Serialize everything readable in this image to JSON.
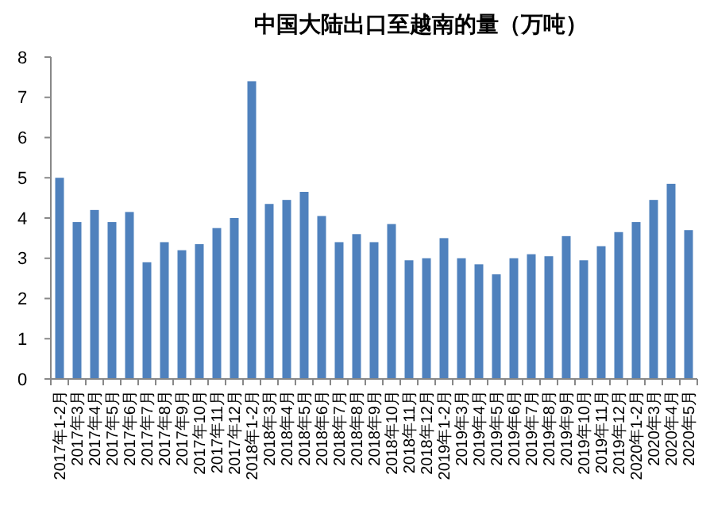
{
  "chart_data": {
    "type": "bar",
    "title": "中国大陆出口至越南的量（万吨）",
    "categories": [
      "2017年1-2月",
      "2017年3月",
      "2017年4月",
      "2017年5月",
      "2017年6月",
      "2017年7月",
      "2017年8月",
      "2017年9月",
      "2017年10月",
      "2017年11月",
      "2017年12月",
      "2018年1-2月",
      "2018年3月",
      "2018年4月",
      "2018年5月",
      "2018年6月",
      "2018年7月",
      "2018年8月",
      "2018年9月",
      "2018年10月",
      "2018年11月",
      "2018年12月",
      "2019年1-2月",
      "2019年3月",
      "2019年4月",
      "2019年5月",
      "2019年6月",
      "2019年7月",
      "2019年8月",
      "2019年9月",
      "2019年10月",
      "2019年11月",
      "2019年12月",
      "2020年1-2月",
      "2020年3月",
      "2020年4月",
      "2020年5月"
    ],
    "values": [
      5.0,
      3.9,
      4.2,
      3.9,
      4.15,
      2.9,
      3.4,
      3.2,
      3.35,
      3.75,
      4.0,
      7.4,
      4.35,
      4.45,
      4.65,
      4.05,
      3.4,
      3.6,
      3.4,
      3.85,
      2.95,
      3.0,
      3.5,
      3.0,
      2.85,
      2.6,
      3.0,
      3.1,
      3.05,
      3.55,
      2.95,
      3.3,
      3.65,
      3.9,
      4.45,
      4.85,
      3.7
    ],
    "color": "#4f81bd",
    "ylim": [
      0,
      8
    ],
    "yticks": [
      0,
      1,
      2,
      3,
      4,
      5,
      6,
      7,
      8
    ],
    "grid": false
  }
}
